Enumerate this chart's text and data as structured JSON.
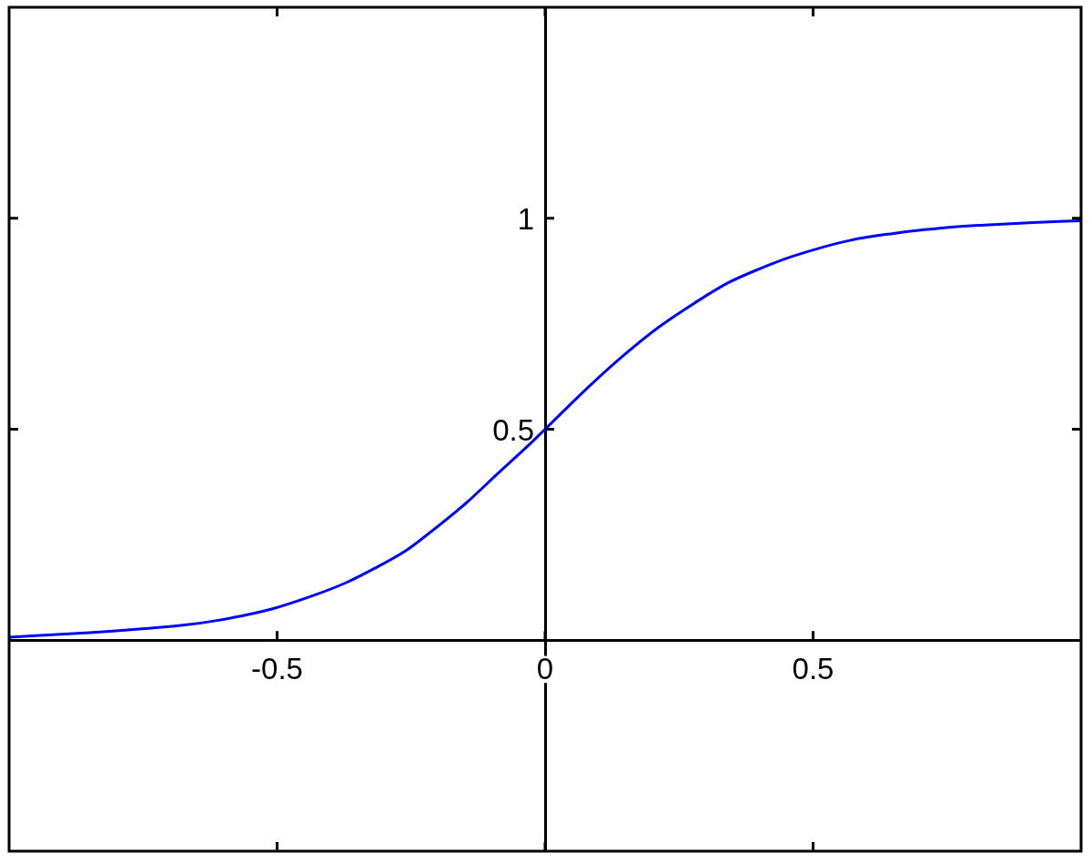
{
  "chart_data": {
    "type": "line",
    "x": [
      -1,
      -0.85,
      -0.74,
      -0.68,
      -0.62,
      -0.51,
      -0.43,
      -0.37,
      -0.32,
      -0.26,
      -0.23,
      -0.15,
      -0.09,
      -0.03,
      0,
      0.08,
      0.14,
      0.21,
      0.28,
      0.34,
      0.4,
      0.46,
      0.57,
      0.65,
      0.74,
      0.82,
      0.91,
      1
    ],
    "values": [
      0.007,
      0.018,
      0.028,
      0.035,
      0.045,
      0.074,
      0.107,
      0.137,
      0.169,
      0.212,
      0.24,
      0.322,
      0.393,
      0.463,
      0.5,
      0.599,
      0.668,
      0.74,
      0.8,
      0.846,
      0.88,
      0.909,
      0.948,
      0.964,
      0.977,
      0.984,
      0.99,
      0.994
    ],
    "color": "#0000ff",
    "xlim": [
      -1,
      1
    ],
    "ylim": [
      -0.5,
      1.5
    ],
    "xticks": [
      -0.5,
      0,
      0.5
    ],
    "yticks": [
      0.5,
      1
    ],
    "grid": false,
    "legend": false,
    "marker": "none",
    "line_style": "solid"
  }
}
